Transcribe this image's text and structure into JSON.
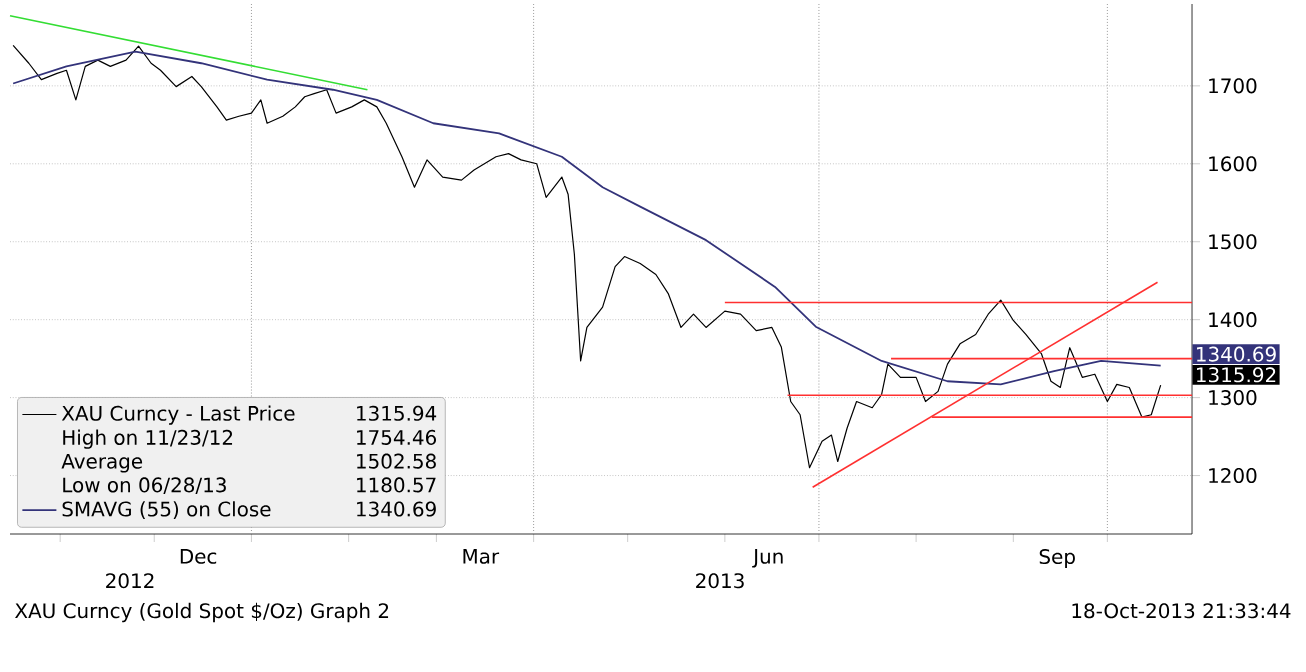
{
  "chart_data": {
    "type": "line",
    "xlim": [
      "2012-10-16",
      "2013-10-28"
    ],
    "ylim": [
      1125,
      1805
    ],
    "yticks": [
      1200,
      1300,
      1400,
      1500,
      1600,
      1700
    ],
    "xticks": [
      {
        "value": "2012-11-01",
        "label": null
      },
      {
        "value": "2012-12-01",
        "label": null
      },
      {
        "value": "2012-12-15",
        "label": "Dec"
      },
      {
        "value": "2013-01-01",
        "label": null
      },
      {
        "value": "2013-02-01",
        "label": null
      },
      {
        "value": "2013-03-01",
        "label": null
      },
      {
        "value": "2013-03-15",
        "label": "Mar"
      },
      {
        "value": "2013-04-01",
        "label": null
      },
      {
        "value": "2013-05-01",
        "label": null
      },
      {
        "value": "2013-06-01",
        "label": null
      },
      {
        "value": "2013-06-15",
        "label": "Jun"
      },
      {
        "value": "2013-07-01",
        "label": null
      },
      {
        "value": "2013-08-01",
        "label": null
      },
      {
        "value": "2013-09-01",
        "label": null
      },
      {
        "value": "2013-09-15",
        "label": "Sep"
      },
      {
        "value": "2013-10-01",
        "label": null
      }
    ],
    "grid": "y",
    "legend": "bottom left",
    "ref_lines": [
      {
        "axis": "x",
        "value": "2013-01-01",
        "color": "#999999",
        "line_style": "dotted"
      },
      {
        "axis": "x",
        "value": "2013-04-01",
        "color": "#999999",
        "line_style": "dotted"
      },
      {
        "axis": "x",
        "value": "2013-07-01",
        "color": "#999999",
        "line_style": "dotted"
      },
      {
        "axis": "x",
        "value": "2013-10-01",
        "color": "#999999",
        "line_style": "dotted"
      }
    ],
    "series": [
      {
        "name": "XAU Curncy - Last Price",
        "color": "#000000",
        "x": [
          "2012-10-17",
          "2012-10-22",
          "2012-10-26",
          "2012-10-31",
          "2012-11-03",
          "2012-11-06",
          "2012-11-09",
          "2012-11-13",
          "2012-11-17",
          "2012-11-22",
          "2012-11-26",
          "2012-11-30",
          "2012-12-03",
          "2012-12-08",
          "2012-12-13",
          "2012-12-16",
          "2012-12-21",
          "2012-12-24",
          "2012-12-28",
          "2013-01-01",
          "2013-01-04",
          "2013-01-06",
          "2013-01-11",
          "2013-01-15",
          "2013-01-18",
          "2013-01-21",
          "2013-01-25",
          "2013-01-28",
          "2013-02-02",
          "2013-02-06",
          "2013-02-10",
          "2013-02-13",
          "2013-02-18",
          "2013-02-22",
          "2013-02-26",
          "2013-03-03",
          "2013-03-09",
          "2013-03-13",
          "2013-03-20",
          "2013-03-24",
          "2013-03-28",
          "2013-04-02",
          "2013-04-05",
          "2013-04-10",
          "2013-04-12",
          "2013-04-14",
          "2013-04-16",
          "2013-04-18",
          "2013-04-23",
          "2013-04-27",
          "2013-04-30",
          "2013-05-05",
          "2013-05-10",
          "2013-05-14",
          "2013-05-18",
          "2013-05-22",
          "2013-05-26",
          "2013-06-01",
          "2013-06-06",
          "2013-06-11",
          "2013-06-16",
          "2013-06-19",
          "2013-06-22",
          "2013-06-25",
          "2013-06-28",
          "2013-07-02",
          "2013-07-05",
          "2013-07-07",
          "2013-07-10",
          "2013-07-13",
          "2013-07-18",
          "2013-07-21",
          "2013-07-23",
          "2013-07-27",
          "2013-08-01",
          "2013-08-04",
          "2013-08-08",
          "2013-08-11",
          "2013-08-15",
          "2013-08-20",
          "2013-08-24",
          "2013-08-28",
          "2013-09-01",
          "2013-09-05",
          "2013-09-10",
          "2013-09-13",
          "2013-09-16",
          "2013-09-19",
          "2013-09-23",
          "2013-09-27",
          "2013-10-01",
          "2013-10-04",
          "2013-10-08",
          "2013-10-12",
          "2013-10-15",
          "2013-10-18"
        ],
        "values": [
          1752,
          1729,
          1708,
          1716,
          1720,
          1682,
          1725,
          1733,
          1725,
          1733,
          1751,
          1729,
          1720,
          1699,
          1712,
          1699,
          1673,
          1656,
          1661,
          1665,
          1682,
          1652,
          1661,
          1673,
          1686,
          1690,
          1695,
          1665,
          1673,
          1682,
          1673,
          1652,
          1609,
          1570,
          1605,
          1583,
          1579,
          1592,
          1609,
          1613,
          1605,
          1600,
          1557,
          1583,
          1561,
          1484,
          1347,
          1390,
          1416,
          1468,
          1481,
          1472,
          1458,
          1433,
          1390,
          1407,
          1390,
          1411,
          1407,
          1386,
          1390,
          1365,
          1295,
          1278,
          1210,
          1244,
          1252,
          1218,
          1261,
          1295,
          1287,
          1304,
          1343,
          1326,
          1326,
          1295,
          1308,
          1343,
          1369,
          1381,
          1407,
          1425,
          1399,
          1381,
          1356,
          1321,
          1313,
          1364,
          1326,
          1330,
          1295,
          1317,
          1313,
          1275,
          1278,
          1316
        ]
      },
      {
        "name": "SMAVG (55) on Close",
        "color": "#33337a",
        "x": [
          "2012-10-17",
          "2012-11-03",
          "2012-11-25",
          "2012-12-16",
          "2013-01-06",
          "2013-01-27",
          "2013-02-10",
          "2013-02-28",
          "2013-03-21",
          "2013-04-10",
          "2013-04-23",
          "2013-05-05",
          "2013-05-26",
          "2013-06-17",
          "2013-06-30",
          "2013-07-21",
          "2013-08-11",
          "2013-08-28",
          "2013-09-14",
          "2013-09-29",
          "2013-10-18"
        ],
        "values": [
          1703,
          1725,
          1744,
          1729,
          1708,
          1695,
          1682,
          1652,
          1639,
          1609,
          1570,
          1545,
          1502,
          1442,
          1391,
          1347,
          1321,
          1317,
          1334,
          1347,
          1341
        ]
      },
      {
        "color": "#33dd33",
        "x": [
          "2012-10-16",
          "2013-02-07"
        ],
        "values": [
          1790,
          1695
        ]
      },
      {
        "color": "#ff3030",
        "x": [
          "2013-06-01",
          "2013-10-28"
        ],
        "values": [
          1422,
          1422
        ]
      },
      {
        "color": "#ff3030",
        "x": [
          "2013-07-24",
          "2013-10-28"
        ],
        "values": [
          1350,
          1350
        ]
      },
      {
        "color": "#ff3030",
        "x": [
          "2013-06-21",
          "2013-10-28"
        ],
        "values": [
          1303,
          1303
        ]
      },
      {
        "color": "#ff3030",
        "x": [
          "2013-08-06",
          "2013-10-28"
        ],
        "values": [
          1275,
          1275
        ]
      },
      {
        "color": "#ff3030",
        "x": [
          "2013-06-29",
          "2013-10-17"
        ],
        "values": [
          1185,
          1448
        ]
      }
    ],
    "annotations": [
      "1315.94",
      "High on 11/23/12",
      "1754.46",
      "Average",
      "1502.58",
      "Low on 06/28/13",
      "1180.57",
      "1340.69",
      "1315.92",
      "1340.69",
      "2012",
      "2013",
      "XAU Curncy (Gold Spot $/Oz) Graph 2",
      "18-Oct-2013 21:33:44"
    ]
  }
}
